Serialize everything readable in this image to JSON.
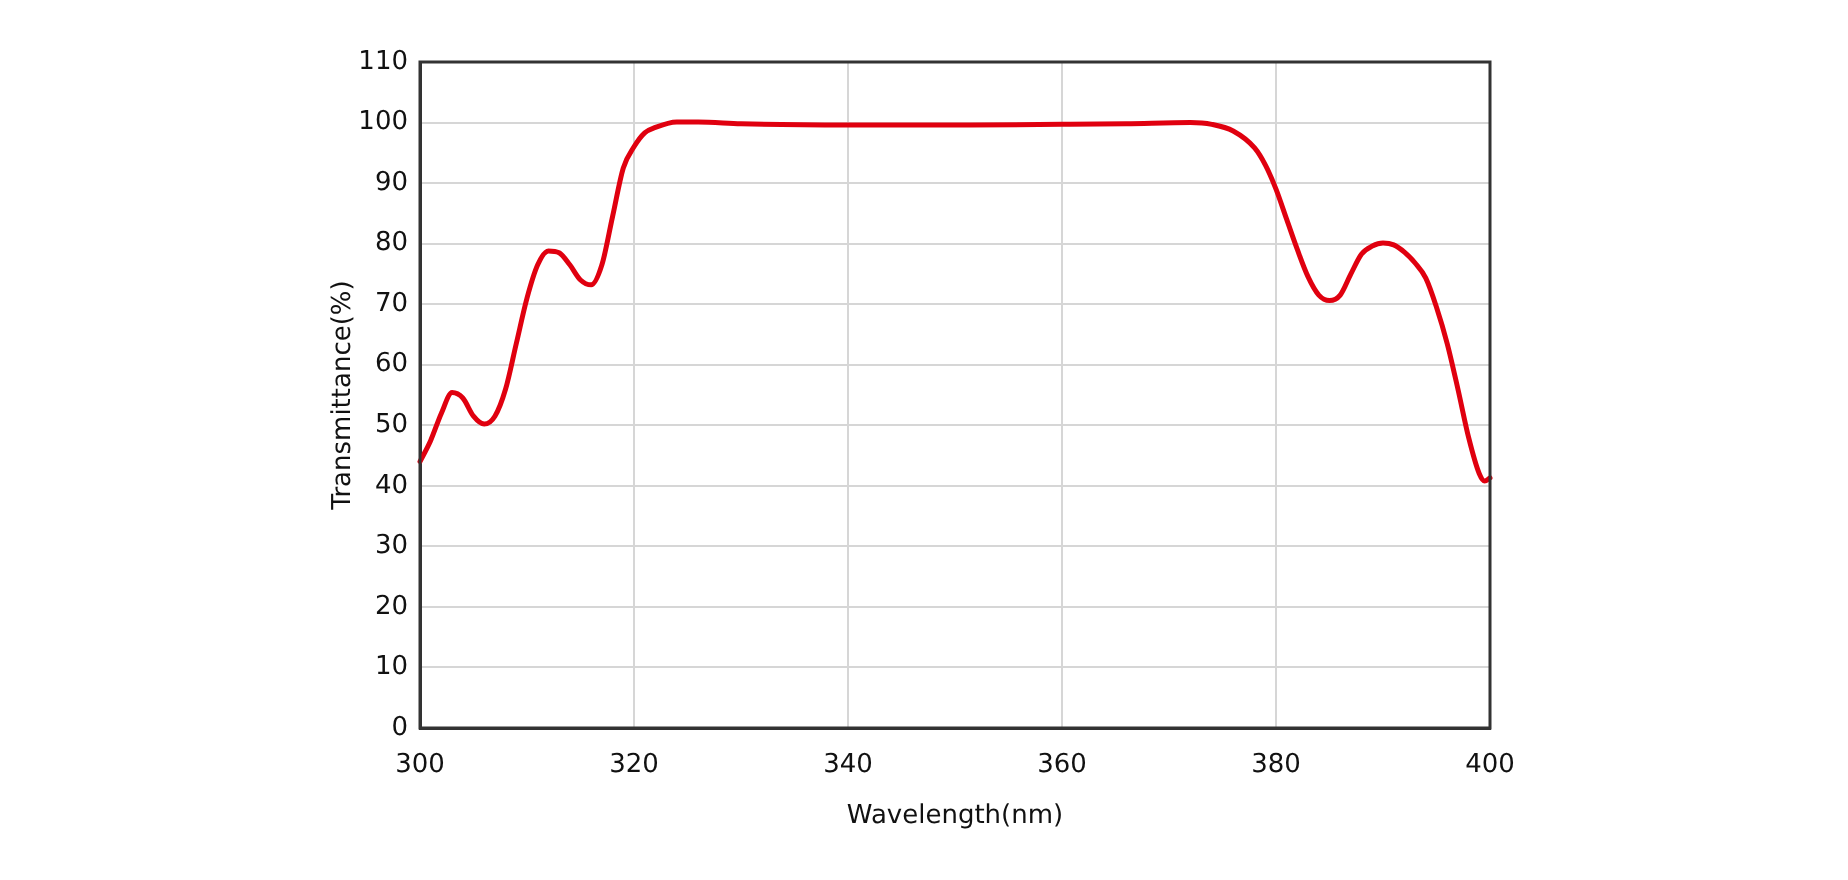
{
  "chart_data": {
    "type": "line",
    "xlabel": "Wavelength(nm)",
    "ylabel": "Transmittance(%)",
    "color": "#e0000f",
    "marker": "none",
    "grid": true,
    "xlim": [
      300,
      400
    ],
    "xticks": [
      300,
      320,
      340,
      360,
      380,
      400
    ],
    "ylim": [
      0,
      110
    ],
    "yticks": [
      0,
      10,
      20,
      30,
      40,
      50,
      60,
      70,
      80,
      90,
      100,
      110
    ],
    "x": [
      300,
      301,
      302,
      303,
      304,
      305,
      306,
      307,
      308,
      309,
      310,
      311,
      312,
      313,
      314,
      315,
      316,
      317,
      318,
      319,
      320,
      321,
      322,
      324,
      326,
      330,
      340,
      350,
      360,
      366,
      372,
      374,
      376,
      378,
      379,
      380,
      381,
      382,
      383,
      384,
      385,
      386,
      387,
      388,
      389,
      390,
      391,
      392,
      393,
      394,
      395,
      396,
      397,
      398,
      399,
      399.5,
      400
    ],
    "values": [
      44,
      47.5,
      52,
      55.4,
      54.5,
      51.5,
      50.2,
      51.5,
      56,
      63.5,
      71,
      76.5,
      78.8,
      78.5,
      76.5,
      74,
      73.2,
      76.5,
      84.5,
      92.5,
      96,
      98.3,
      99.2,
      100.1,
      100.1,
      99.8,
      99.6,
      99.6,
      99.7,
      99.8,
      100,
      99.7,
      98.6,
      95.8,
      93,
      89,
      84,
      79,
      74.5,
      71.5,
      70.6,
      71.5,
      75,
      78.3,
      79.6,
      80.1,
      79.8,
      78.6,
      76.8,
      74.3,
      69.5,
      63.5,
      56,
      48,
      42,
      40.8,
      41.3
    ]
  }
}
